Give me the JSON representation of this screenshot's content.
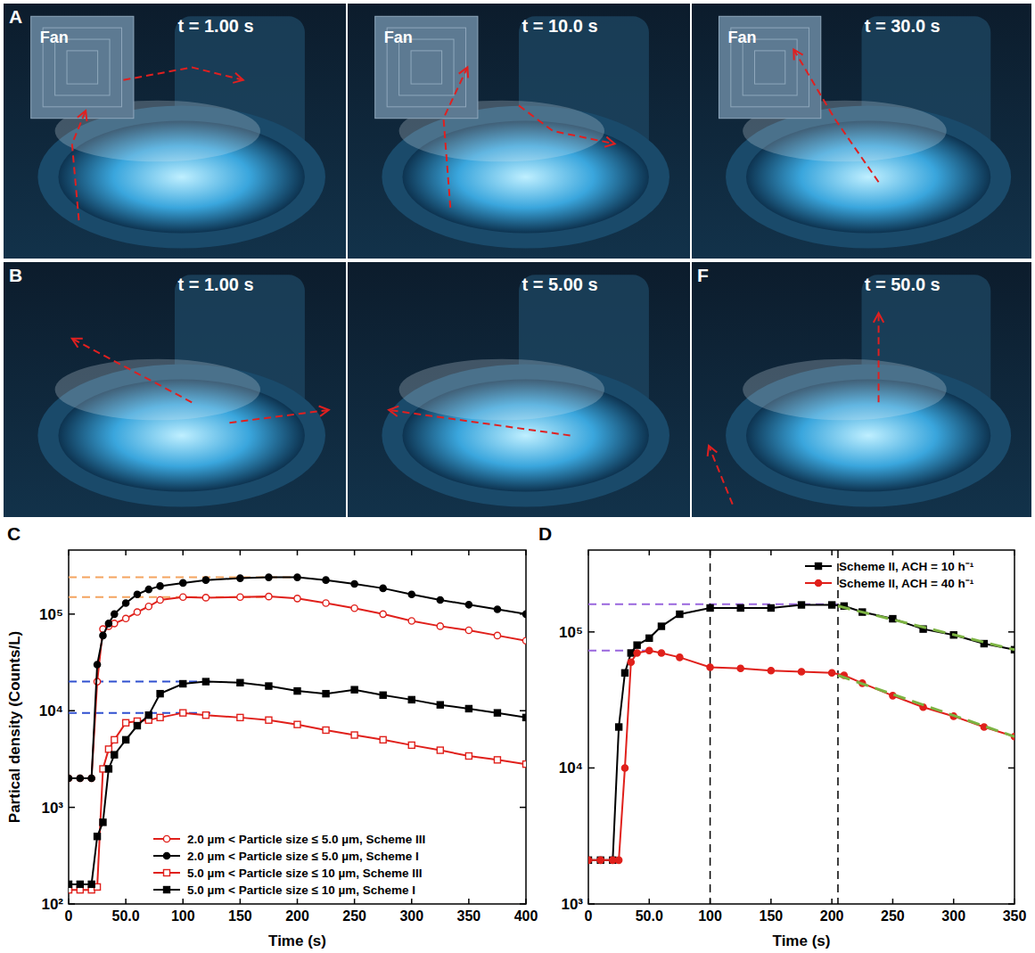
{
  "photos": [
    {
      "letter": "A",
      "time_label": "t = 1.00 s",
      "fan_label": "Fan"
    },
    {
      "time_label": "t = 10.0 s",
      "fan_label": "Fan"
    },
    {
      "time_label": "t = 30.0 s",
      "fan_label": "Fan"
    },
    {
      "letter": "B",
      "time_label": "t = 1.00 s"
    },
    {
      "time_label": "t = 5.00 s"
    },
    {
      "letter": "F",
      "time_label": "t = 50.0 s"
    }
  ],
  "chart_data": [
    {
      "type": "line",
      "letter": "C",
      "ylabel": "Partical density (Counts/L)",
      "xlabel": "Time (s)",
      "log": "y",
      "legend": "lower center",
      "xlim": [
        0,
        400
      ],
      "xticks": [
        0,
        {
          "value": 50,
          "label": "50.0"
        },
        100,
        150,
        200,
        250,
        300,
        350,
        400
      ],
      "ylim": [
        100,
        460000
      ],
      "yticks": [
        {
          "value": 100,
          "label": "10²"
        },
        {
          "value": 1000,
          "label": "10³"
        },
        {
          "value": 10000,
          "label": "10⁴"
        },
        {
          "value": 100000,
          "label": "10⁵"
        }
      ],
      "x": [
        0,
        10,
        20,
        25,
        30,
        35,
        40,
        50,
        60,
        70,
        80,
        100,
        120,
        150,
        175,
        200,
        225,
        250,
        275,
        300,
        325,
        350,
        375,
        400
      ],
      "series": [
        {
          "name": "2.0 µm < Particle size ≤  5.0 µm, Scheme III",
          "color": "#e0201b",
          "marker": "circle-open",
          "values": [
            2000,
            2000,
            2000,
            20000,
            70000,
            75000,
            80000,
            90000,
            105000,
            120000,
            140000,
            150000,
            148000,
            150000,
            152000,
            145000,
            130000,
            115000,
            100000,
            85000,
            75000,
            68000,
            60000,
            53000
          ]
        },
        {
          "name": "2.0 µm < Particle size ≤  5.0 µm, Scheme I",
          "color": "#000000",
          "marker": "circle",
          "values": [
            2000,
            2000,
            2000,
            30000,
            60000,
            80000,
            100000,
            130000,
            160000,
            180000,
            195000,
            210000,
            225000,
            235000,
            240000,
            240000,
            225000,
            205000,
            185000,
            160000,
            140000,
            125000,
            112000,
            100000
          ]
        },
        {
          "name": "5.0 µm < Particle size ≤  10 µm, Scheme III",
          "color": "#e0201b",
          "marker": "square-open",
          "values": [
            140,
            140,
            140,
            150,
            2500,
            4000,
            5000,
            7500,
            7800,
            8000,
            8500,
            9500,
            9000,
            8500,
            8000,
            7200,
            6300,
            5600,
            5000,
            4400,
            3900,
            3400,
            3100,
            2800
          ]
        },
        {
          "name": "5.0 µm < Particle size ≤  10 µm, Scheme I",
          "color": "#000000",
          "marker": "square",
          "values": [
            160,
            160,
            160,
            500,
            700,
            2500,
            3500,
            5000,
            7000,
            9000,
            15000,
            19000,
            20000,
            19500,
            18000,
            16000,
            15000,
            16500,
            14500,
            13000,
            11500,
            10500,
            9500,
            8500
          ]
        }
      ],
      "hlines": [
        {
          "y": 240000,
          "x_end": 195,
          "color": "#f4a460"
        },
        {
          "y": 150000,
          "x_end": 170,
          "color": "#f4a460"
        },
        {
          "y": 20000,
          "x_end": 125,
          "color": "#3050d0"
        },
        {
          "y": 9500,
          "x_end": 125,
          "color": "#3050d0"
        }
      ]
    },
    {
      "type": "line",
      "letter": "D",
      "xlabel": "Time (s)",
      "log": "y",
      "legend": "upper right",
      "xlim": [
        0,
        350
      ],
      "xticks": [
        0,
        {
          "value": 50,
          "label": "50.0"
        },
        100,
        150,
        200,
        250,
        300,
        350
      ],
      "ylim": [
        1000,
        400000
      ],
      "yticks": [
        {
          "value": 1000,
          "label": "10³"
        },
        {
          "value": 10000,
          "label": "10⁴"
        },
        {
          "value": 100000,
          "label": "10⁵"
        }
      ],
      "x": [
        0,
        10,
        20,
        25,
        30,
        35,
        40,
        50,
        60,
        75,
        100,
        125,
        150,
        175,
        200,
        210,
        225,
        250,
        275,
        300,
        325,
        350
      ],
      "series": [
        {
          "name": "Scheme II, ACH = 10 h⁻¹",
          "color": "#000000",
          "marker": "square",
          "values": [
            2100,
            2100,
            2100,
            20000,
            50000,
            70000,
            80000,
            90000,
            110000,
            135000,
            150000,
            150000,
            150000,
            158000,
            158000,
            155000,
            140000,
            125000,
            105000,
            95000,
            82000,
            74000
          ]
        },
        {
          "name": "Scheme II, ACH = 40 h⁻¹",
          "color": "#e0201b",
          "marker": "circle",
          "values": [
            2100,
            2100,
            2100,
            2100,
            10000,
            60000,
            70000,
            73000,
            70000,
            65000,
            55000,
            54000,
            52000,
            51000,
            50000,
            48000,
            42000,
            34000,
            28000,
            24000,
            20000,
            17000
          ]
        }
      ],
      "hlines": [
        {
          "y": 160000,
          "x_end": 205,
          "color": "#9966dd"
        },
        {
          "y": 73000,
          "x_end": 50,
          "color": "#9966dd"
        }
      ],
      "vlines": [
        {
          "x": 100,
          "color": "#000000"
        },
        {
          "x": 205,
          "color": "#000000"
        }
      ],
      "fit_lines": [
        {
          "x": [
            205,
            350
          ],
          "y": [
            155000,
            74000
          ],
          "color": "#7cb342"
        },
        {
          "x": [
            205,
            350
          ],
          "y": [
            48000,
            17000
          ],
          "color": "#7cb342"
        }
      ]
    }
  ]
}
